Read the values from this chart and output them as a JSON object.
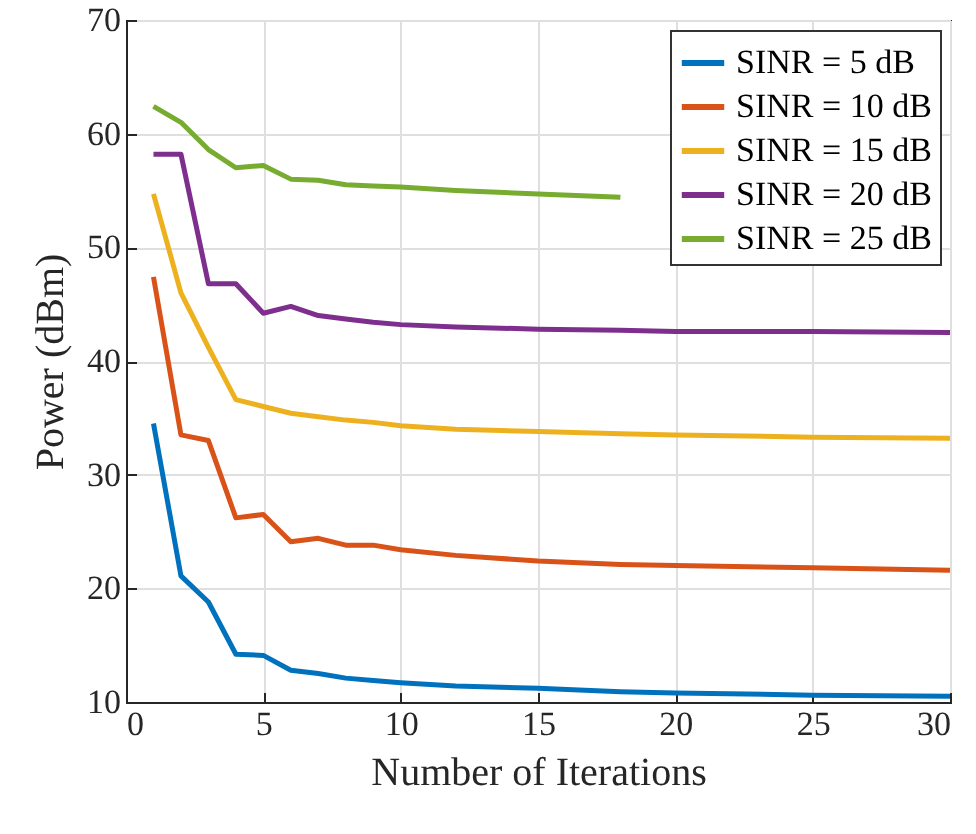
{
  "chart_data": {
    "type": "line",
    "xlabel": "Number of Iterations",
    "ylabel": "Power (dBm)",
    "x": [
      1,
      2,
      3,
      4,
      5,
      6,
      7,
      8,
      9,
      10,
      12,
      15,
      18,
      20,
      25,
      30
    ],
    "series": [
      {
        "name": "SINR = 5 dB",
        "color": "#0072bd",
        "values": [
          34.5,
          21.1,
          18.8,
          14.2,
          14.1,
          12.8,
          12.5,
          12.1,
          11.9,
          11.7,
          11.4,
          11.2,
          10.9,
          10.8,
          10.6,
          10.5
        ]
      },
      {
        "name": "SINR = 10 dB",
        "color": "#d95319",
        "values": [
          47.4,
          33.5,
          33.0,
          26.2,
          26.5,
          24.1,
          24.4,
          23.8,
          23.8,
          23.4,
          22.9,
          22.4,
          22.1,
          22.0,
          21.8,
          21.6
        ]
      },
      {
        "name": "SINR = 15 dB",
        "color": "#edb120",
        "values": [
          54.7,
          46.0,
          41.2,
          36.6,
          36.0,
          35.4,
          35.1,
          34.8,
          34.6,
          34.3,
          34.0,
          33.8,
          33.6,
          33.5,
          33.3,
          33.2
        ]
      },
      {
        "name": "SINR = 20 dB",
        "color": "#7e2f8e",
        "values": [
          58.2,
          58.2,
          46.8,
          46.8,
          44.2,
          44.8,
          44.0,
          43.7,
          43.4,
          43.2,
          43.0,
          42.8,
          42.7,
          42.6,
          42.6,
          42.5
        ]
      },
      {
        "name": "SINR = 25 dB",
        "color": "#77ac30",
        "values": [
          62.4,
          61.0,
          58.6,
          57.0,
          57.2,
          56.0,
          55.9,
          55.5,
          55.4,
          55.3,
          55.0,
          54.7,
          54.4,
          null,
          null,
          null
        ]
      }
    ],
    "xlim": [
      0,
      30
    ],
    "xticks": [
      0,
      5,
      10,
      15,
      20,
      25,
      30
    ],
    "ylim": [
      10,
      70
    ],
    "yticks": [
      10,
      20,
      30,
      40,
      50,
      60,
      70
    ],
    "grid": true,
    "legend": "top right",
    "marker": "none",
    "line_style": "solid"
  }
}
